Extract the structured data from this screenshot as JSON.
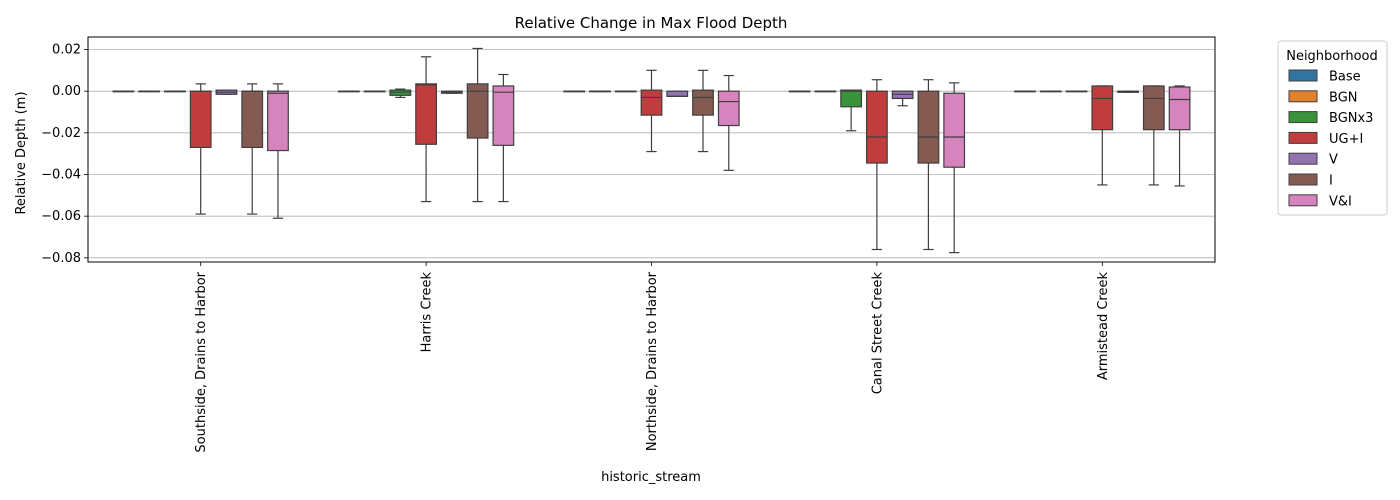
{
  "chart_data": {
    "type": "box",
    "title": "Relative Change in Max Flood Depth",
    "xlabel": "historic_stream",
    "ylabel": "Relative Depth (m)",
    "ylim": [
      -0.082,
      0.026
    ],
    "yticks": [
      0.02,
      0.0,
      -0.02,
      -0.04,
      -0.06,
      -0.08
    ],
    "ytick_labels": [
      "0.02",
      "0.00",
      "−0.02",
      "−0.04",
      "−0.06",
      "−0.08"
    ],
    "grid": "y",
    "legend": {
      "title": "Neighborhood",
      "position": "outside-right"
    },
    "categories": [
      "Southside, Drains to Harbor",
      "Harris Creek",
      "Northside, Drains to Harbor",
      "Canal Street Creek",
      "Armistead Creek"
    ],
    "series": [
      {
        "name": "Base",
        "color": "#3274a1",
        "boxes": [
          {
            "whislo": 0,
            "q1": 0,
            "med": 0,
            "q3": 0,
            "whishi": 0
          },
          {
            "whislo": 0,
            "q1": 0,
            "med": 0,
            "q3": 0,
            "whishi": 0
          },
          {
            "whislo": 0,
            "q1": 0,
            "med": 0,
            "q3": 0,
            "whishi": 0
          },
          {
            "whislo": 0,
            "q1": 0,
            "med": 0,
            "q3": 0,
            "whishi": 0
          },
          {
            "whislo": 0,
            "q1": 0,
            "med": 0,
            "q3": 0,
            "whishi": 0
          }
        ]
      },
      {
        "name": "BGN",
        "color": "#e1812c",
        "boxes": [
          {
            "whislo": 0,
            "q1": 0,
            "med": 0,
            "q3": 0,
            "whishi": 0
          },
          {
            "whislo": 0,
            "q1": 0,
            "med": 0,
            "q3": 0,
            "whishi": 0
          },
          {
            "whislo": 0,
            "q1": 0,
            "med": 0,
            "q3": 0,
            "whishi": 0
          },
          {
            "whislo": 0,
            "q1": 0,
            "med": 0,
            "q3": 0,
            "whishi": 0
          },
          {
            "whislo": 0,
            "q1": 0,
            "med": 0,
            "q3": 0,
            "whishi": 0
          }
        ]
      },
      {
        "name": "BGNx3",
        "color": "#3a923a",
        "boxes": [
          {
            "whislo": 0,
            "q1": 0,
            "med": 0,
            "q3": 0,
            "whishi": 0
          },
          {
            "whislo": -0.003,
            "q1": -0.002,
            "med": -0.0005,
            "q3": 0.0005,
            "whishi": 0.001
          },
          {
            "whislo": 0,
            "q1": 0,
            "med": 0,
            "q3": 0,
            "whishi": 0
          },
          {
            "whislo": -0.019,
            "q1": -0.0075,
            "med": 0,
            "q3": 0.0005,
            "whishi": 0.0005
          },
          {
            "whislo": 0,
            "q1": 0,
            "med": 0,
            "q3": 0,
            "whishi": 0
          }
        ]
      },
      {
        "name": "UG+I",
        "color": "#c03d3e",
        "boxes": [
          {
            "whislo": -0.059,
            "q1": -0.027,
            "med": 0,
            "q3": 0,
            "whishi": 0.0035
          },
          {
            "whislo": -0.053,
            "q1": -0.0255,
            "med": 0.003,
            "q3": 0.0035,
            "whishi": 0.0165
          },
          {
            "whislo": -0.029,
            "q1": -0.0115,
            "med": -0.003,
            "q3": 0.0005,
            "whishi": 0.01
          },
          {
            "whislo": -0.076,
            "q1": -0.0345,
            "med": -0.022,
            "q3": 0,
            "whishi": 0.0055
          },
          {
            "whislo": -0.045,
            "q1": -0.0185,
            "med": -0.0035,
            "q3": 0.0025,
            "whishi": 0.0025
          }
        ]
      },
      {
        "name": "V",
        "color": "#9372b2",
        "boxes": [
          {
            "whislo": -0.0015,
            "q1": -0.0015,
            "med": -0.0005,
            "q3": 0.0005,
            "whishi": 0.0005
          },
          {
            "whislo": -0.001,
            "q1": -0.001,
            "med": -0.0005,
            "q3": 0,
            "whishi": 0
          },
          {
            "whislo": -0.0025,
            "q1": -0.0025,
            "med": -0.0025,
            "q3": 0,
            "whishi": 0
          },
          {
            "whislo": -0.007,
            "q1": -0.0035,
            "med": -0.0015,
            "q3": 0,
            "whishi": 0
          },
          {
            "whislo": -0.0005,
            "q1": -0.0005,
            "med": -0.0005,
            "q3": 0,
            "whishi": 0
          }
        ]
      },
      {
        "name": "I",
        "color": "#845b53",
        "boxes": [
          {
            "whislo": -0.059,
            "q1": -0.027,
            "med": 0,
            "q3": 0,
            "whishi": 0.0035
          },
          {
            "whislo": -0.053,
            "q1": -0.0225,
            "med": 0,
            "q3": 0.0035,
            "whishi": 0.0205
          },
          {
            "whislo": -0.029,
            "q1": -0.0115,
            "med": -0.003,
            "q3": 0.0005,
            "whishi": 0.01
          },
          {
            "whislo": -0.076,
            "q1": -0.0345,
            "med": -0.022,
            "q3": 0,
            "whishi": 0.0055
          },
          {
            "whislo": -0.045,
            "q1": -0.0185,
            "med": -0.0035,
            "q3": 0.0025,
            "whishi": 0.0025
          }
        ]
      },
      {
        "name": "V&I",
        "color": "#d684bd",
        "boxes": [
          {
            "whislo": -0.061,
            "q1": -0.0285,
            "med": -0.001,
            "q3": 0,
            "whishi": 0.0035
          },
          {
            "whislo": -0.053,
            "q1": -0.026,
            "med": -0.0005,
            "q3": 0.0025,
            "whishi": 0.008
          },
          {
            "whislo": -0.038,
            "q1": -0.0165,
            "med": -0.005,
            "q3": 0,
            "whishi": 0.0075
          },
          {
            "whislo": -0.0775,
            "q1": -0.0365,
            "med": -0.022,
            "q3": -0.001,
            "whishi": 0.004
          },
          {
            "whislo": -0.0455,
            "q1": -0.0185,
            "med": -0.004,
            "q3": 0.002,
            "whishi": 0.0025
          }
        ]
      }
    ]
  }
}
